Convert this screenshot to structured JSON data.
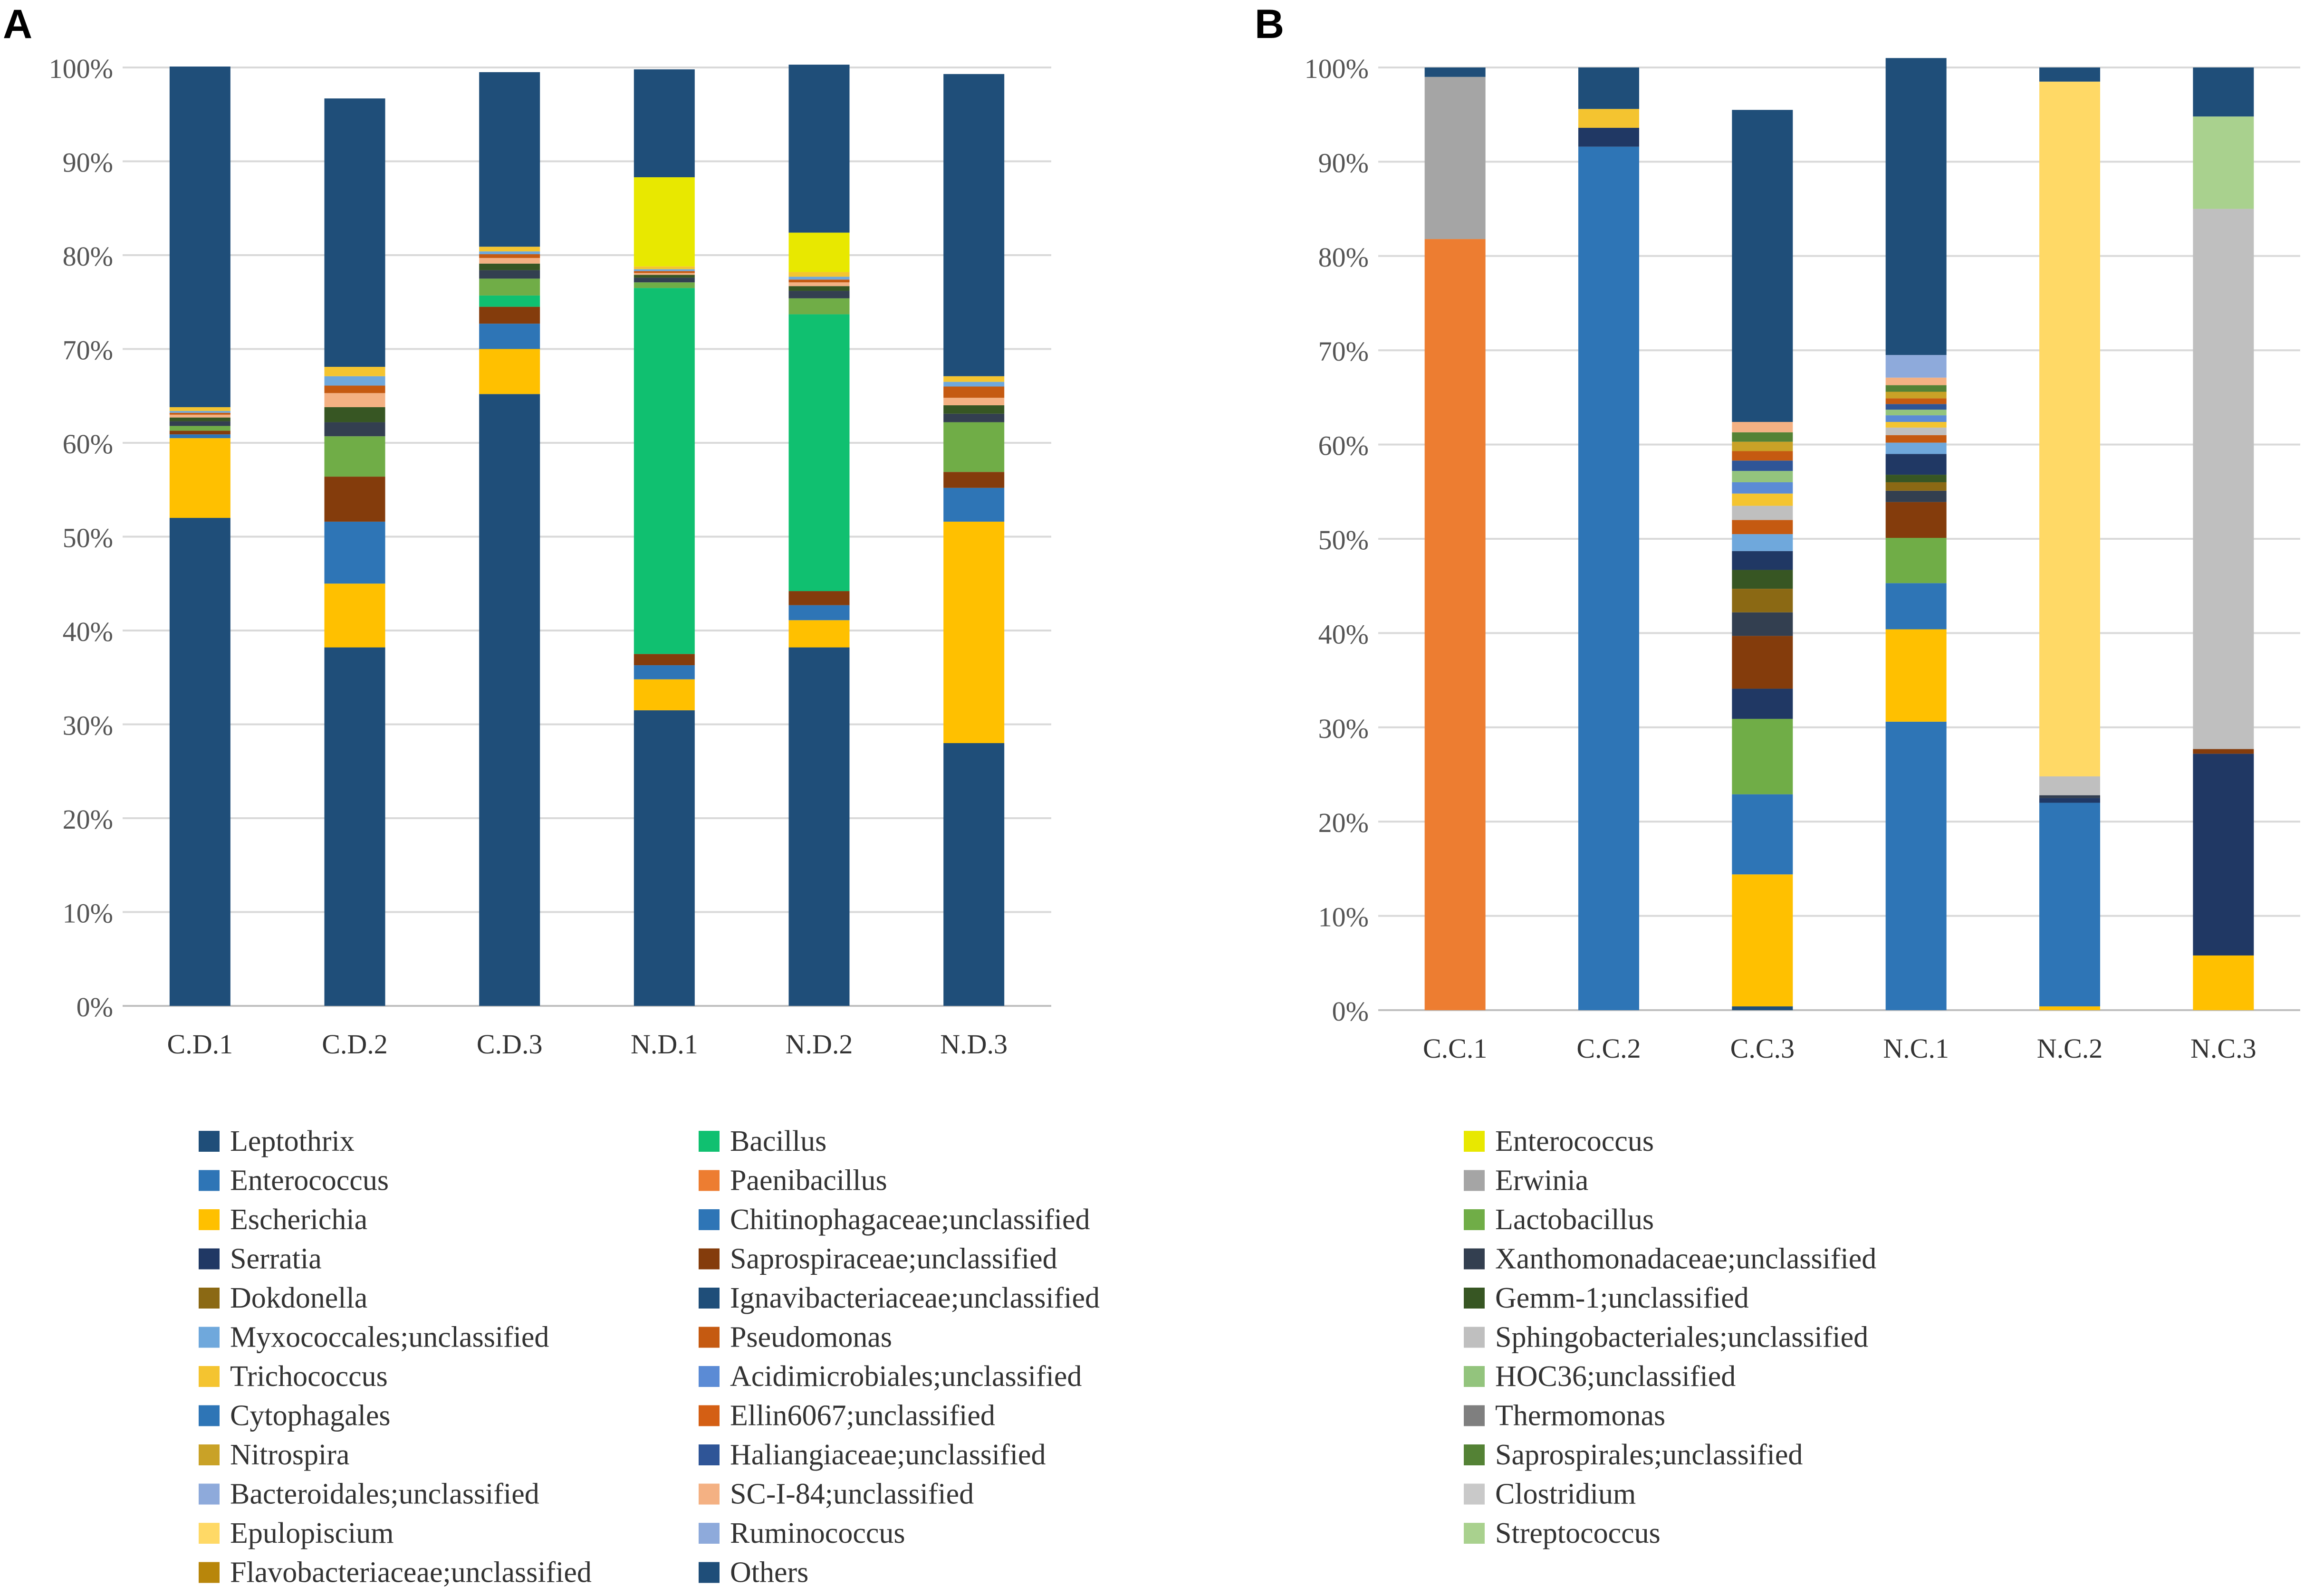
{
  "colors": {
    "Leptothrix": "#1f4e79",
    "Enterococcus": "#2e75b6",
    "Escherichia": "#ffc000",
    "Serratia": "#203864",
    "Dokdonella": "#8b6914",
    "Myxococcales;unclassified": "#6fa8dc",
    "Trichococcus": "#f4c430",
    "Cytophagales": "#2e75b6",
    "Nitrospira": "#c9a227",
    "Bacteroidales;unclassified": "#8eaadb",
    "Epulopiscium": "#ffd966",
    "Flavobacteriaceae;unclassified": "#b8860b",
    "Bacillus": "#10c070",
    "Paenibacillus": "#ed7d31",
    "Chitinophagaceae;unclassified": "#2e75b6",
    "Saprospiraceae;unclassified": "#843c0c",
    "Ignavibacteriaceae;unclassified": "#1f4e79",
    "Pseudomonas": "#c55a11",
    "Acidimicrobiales;unclassified": "#5b8bd5",
    "Ellin6067;unclassified": "#d45f14",
    "Haliangiaceae;unclassified": "#2f5597",
    "SC-I-84;unclassified": "#f4b183",
    "Ruminococcus": "#8eaadb",
    "Others": "#1f4e79",
    "Enterococcus (yellow)": "#e8e800",
    "Erwinia": "#a5a5a5",
    "Lactobacillus": "#70ad47",
    "Xanthomonadaceae;unclassified": "#333f50",
    "Gemm-1;unclassified": "#375623",
    "Sphingobacteriales;unclassified": "#bfbfbf",
    "HOC36;unclassified": "#93c47d",
    "Thermomonas": "#7f7f7f",
    "Saprospirales;unclassified": "#548235",
    "Clostridium": "#c9c9c9",
    "Streptococcus": "#a9d18e"
  },
  "chart_data": [
    {
      "panel": "A",
      "type": "bar",
      "stacked": true,
      "ylim": [
        0,
        100
      ],
      "yticks": [
        "0%",
        "10%",
        "20%",
        "30%",
        "40%",
        "50%",
        "60%",
        "70%",
        "80%",
        "90%",
        "100%"
      ],
      "categories": [
        "C.D.1",
        "C.D.2",
        "C.D.3",
        "N.D.1",
        "N.D.2",
        "N.D.3"
      ],
      "series": [
        {
          "name": "Leptothrix",
          "values": [
            52,
            38.2,
            65.2,
            31.5,
            38.2,
            28
          ]
        },
        {
          "name": "Escherichia",
          "values": [
            8.5,
            6.8,
            4.8,
            3.3,
            2.9,
            23.6
          ]
        },
        {
          "name": "Enterococcus",
          "values": [
            0.4,
            6.6,
            2.7,
            1.5,
            1.6,
            3.6
          ]
        },
        {
          "name": "Saprospiraceae;unclassified",
          "values": [
            0.4,
            4.8,
            1.8,
            1.2,
            1.5,
            1.7
          ]
        },
        {
          "name": "Bacillus",
          "values": [
            0,
            0,
            1.2,
            39,
            29.5,
            0
          ]
        },
        {
          "name": "Lactobacillus",
          "values": [
            0.5,
            4.3,
            1.8,
            0.6,
            1.7,
            5.3
          ]
        },
        {
          "name": "Xanthomonadaceae;unclassified",
          "values": [
            0.5,
            1.5,
            0.9,
            0.5,
            0.8,
            0.9
          ]
        },
        {
          "name": "Gemm-1;unclassified",
          "values": [
            0.4,
            1.6,
            0.7,
            0.3,
            0.5,
            0.9
          ]
        },
        {
          "name": "SC-I-84;unclassified",
          "values": [
            0.3,
            1.5,
            0.6,
            0.2,
            0.4,
            0.8
          ]
        },
        {
          "name": "Pseudomonas",
          "values": [
            0.2,
            0.8,
            0.4,
            0.2,
            0.3,
            1.2
          ]
        },
        {
          "name": "Myxococcales;unclassified",
          "values": [
            0.2,
            1.0,
            0.3,
            0.2,
            0.3,
            0.5
          ]
        },
        {
          "name": "Trichococcus",
          "values": [
            0.4,
            1.0,
            0.5,
            0.3,
            0.5,
            0.6
          ]
        },
        {
          "name": "Enterococcus (yellow)",
          "values": [
            0,
            0,
            0,
            9.5,
            4.2,
            0
          ]
        },
        {
          "name": "Others",
          "values": [
            36.3,
            28.6,
            18.6,
            11.5,
            17.9,
            32.2
          ]
        }
      ]
    },
    {
      "panel": "B",
      "type": "bar",
      "stacked": true,
      "ylim": [
        0,
        100
      ],
      "yticks": [
        "0%",
        "10%",
        "20%",
        "30%",
        "40%",
        "50%",
        "60%",
        "70%",
        "80%",
        "90%",
        "100%"
      ],
      "categories": [
        "C.C.1",
        "C.C.2",
        "C.C.3",
        "N.C.1",
        "N.C.2",
        "N.C.3"
      ],
      "series": [
        {
          "name": "Leptothrix",
          "values": [
            0,
            0,
            0.4,
            0,
            0,
            0
          ]
        },
        {
          "name": "Escherichia",
          "values": [
            0,
            0,
            14,
            0,
            0.4,
            5.8
          ]
        },
        {
          "name": "Paenibacillus",
          "values": [
            81.8,
            0,
            0,
            0,
            0,
            0
          ]
        },
        {
          "name": "Enterococcus",
          "values": [
            0,
            91.6,
            8.5,
            30.6,
            21.6,
            0
          ]
        },
        {
          "name": "Lactobacillus",
          "values": [
            0,
            0,
            8.0,
            0,
            0,
            0
          ]
        },
        {
          "name": "Serratia",
          "values": [
            0,
            0,
            3.2,
            0,
            0.5,
            21.4
          ]
        },
        {
          "name": "Escherichia (2)",
          "values": [
            0,
            0,
            0,
            9.8,
            0,
            0
          ]
        },
        {
          "name": "Chitinophagaceae;unclassified",
          "values": [
            0,
            0,
            0,
            4.9,
            0,
            0
          ]
        },
        {
          "name": "Lactobacillus (2)",
          "values": [
            0,
            0,
            0,
            4.8,
            0,
            0
          ]
        },
        {
          "name": "Saprospiraceae;unclassified",
          "values": [
            0,
            0,
            5.6,
            3.8,
            0,
            0.5
          ]
        },
        {
          "name": "Xanthomonadaceae;unclassified",
          "values": [
            0,
            0,
            2.5,
            1.2,
            0.3,
            0
          ]
        },
        {
          "name": "Dokdonella",
          "values": [
            0,
            0,
            2.5,
            0.9,
            0,
            0
          ]
        },
        {
          "name": "Gemm-1;unclassified",
          "values": [
            0,
            0,
            2.0,
            0.8,
            0,
            0
          ]
        },
        {
          "name": "Serratia (2)",
          "values": [
            0,
            0,
            2.0,
            2.2,
            0,
            0
          ]
        },
        {
          "name": "Myxococcales;unclassified",
          "values": [
            0,
            0,
            1.8,
            1.2,
            0,
            0
          ]
        },
        {
          "name": "Pseudomonas",
          "values": [
            0,
            0,
            1.5,
            0.8,
            0,
            0
          ]
        },
        {
          "name": "Sphingobacteriales;unclassified",
          "values": [
            0,
            0,
            1.5,
            0.8,
            2.0,
            57.3
          ]
        },
        {
          "name": "Trichococcus",
          "values": [
            0,
            0,
            1.3,
            0.6,
            0,
            0
          ]
        },
        {
          "name": "Acidimicrobiales;unclassified",
          "values": [
            0,
            0,
            1.2,
            0.7,
            0,
            0
          ]
        },
        {
          "name": "HOC36;unclassified",
          "values": [
            0,
            0,
            1.2,
            0.6,
            0,
            0
          ]
        },
        {
          "name": "Haliangiaceae;unclassified",
          "values": [
            0,
            0,
            1.1,
            0.6,
            0,
            0
          ]
        },
        {
          "name": "Pseudomonas (2)",
          "values": [
            0,
            0,
            1.0,
            0.6,
            0,
            0
          ]
        },
        {
          "name": "Nitrospira",
          "values": [
            0,
            0,
            1.0,
            0.7,
            0,
            0
          ]
        },
        {
          "name": "Saprospirales;unclassified",
          "values": [
            0,
            0,
            1.0,
            0.7,
            0,
            0
          ]
        },
        {
          "name": "Epulopiscium",
          "values": [
            0,
            0,
            0,
            0,
            73.7,
            0
          ]
        },
        {
          "name": "SC-I-84;unclassified",
          "values": [
            0,
            0,
            1.1,
            0.8,
            0,
            0
          ]
        },
        {
          "name": "Ruminococcus",
          "values": [
            0,
            0,
            0,
            2.4,
            0,
            0
          ]
        },
        {
          "name": "Erwinia",
          "values": [
            17.2,
            0,
            0,
            0,
            0,
            0
          ]
        },
        {
          "name": "Streptococcus",
          "values": [
            0,
            0,
            0,
            0,
            0,
            9.8
          ]
        },
        {
          "name": "Serratia (3)",
          "values": [
            0,
            2.0,
            0,
            0,
            0,
            0
          ]
        },
        {
          "name": "Trichococcus (2)",
          "values": [
            0,
            2.0,
            0,
            0,
            0,
            0
          ]
        },
        {
          "name": "Others",
          "values": [
            1.0,
            4.4,
            33.1,
            31.5,
            1.5,
            5.2
          ]
        }
      ]
    }
  ],
  "legend": {
    "col1": [
      "Leptothrix",
      "Enterococcus",
      "Escherichia",
      "Serratia",
      "Dokdonella",
      "Myxococcales;unclassified",
      "Trichococcus",
      "Cytophagales",
      "Nitrospira",
      "Bacteroidales;unclassified",
      "Epulopiscium",
      "Flavobacteriaceae;unclassified"
    ],
    "col2": [
      "Bacillus",
      "Paenibacillus",
      "Chitinophagaceae;unclassified",
      "Saprospiraceae;unclassified",
      "Ignavibacteriaceae;unclassified",
      "Pseudomonas",
      "Acidimicrobiales;unclassified",
      "Ellin6067;unclassified",
      "Haliangiaceae;unclassified",
      "SC-I-84;unclassified",
      "Ruminococcus",
      "Others"
    ],
    "col3": [
      "Enterococcus",
      "Erwinia",
      "Lactobacillus",
      "Xanthomonadaceae;unclassified",
      "Gemm-1;unclassified",
      "Sphingobacteriales;unclassified",
      "HOC36;unclassified",
      "Thermomonas",
      "Saprospirales;unclassified",
      "Clostridium",
      "Streptococcus"
    ],
    "col3_color_keys": [
      "Enterococcus (yellow)",
      "Erwinia",
      "Lactobacillus",
      "Xanthomonadaceae;unclassified",
      "Gemm-1;unclassified",
      "Sphingobacteriales;unclassified",
      "HOC36;unclassified",
      "Thermomonas",
      "Saprospirales;unclassified",
      "Clostridium",
      "Streptococcus"
    ]
  }
}
